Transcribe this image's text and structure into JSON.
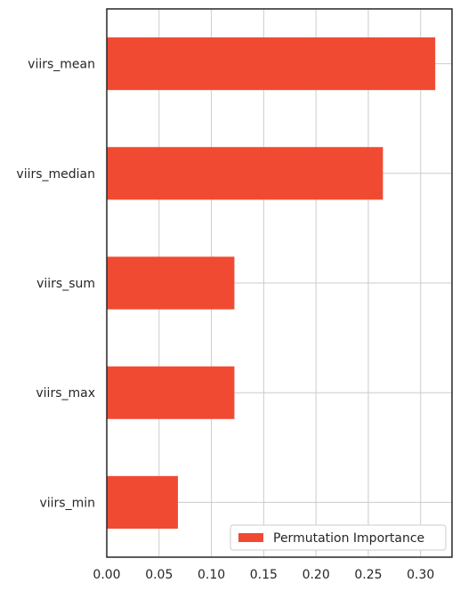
{
  "chart_data": {
    "type": "bar",
    "orientation": "horizontal",
    "categories": [
      "viirs_mean",
      "viirs_median",
      "viirs_sum",
      "viirs_max",
      "viirs_min"
    ],
    "series": [
      {
        "name": "Permutation Importance",
        "values": [
          0.314,
          0.264,
          0.122,
          0.122,
          0.068
        ],
        "color": "#f04a32"
      }
    ],
    "xticks": [
      0.0,
      0.05,
      0.1,
      0.15,
      0.2,
      0.25,
      0.3
    ],
    "xtick_labels": [
      "0.00",
      "0.05",
      "0.10",
      "0.15",
      "0.20",
      "0.25",
      "0.30"
    ],
    "xlim": [
      0,
      0.33
    ],
    "grid": true,
    "legend_position": "lower-right",
    "title": "",
    "xlabel": "",
    "ylabel": ""
  }
}
